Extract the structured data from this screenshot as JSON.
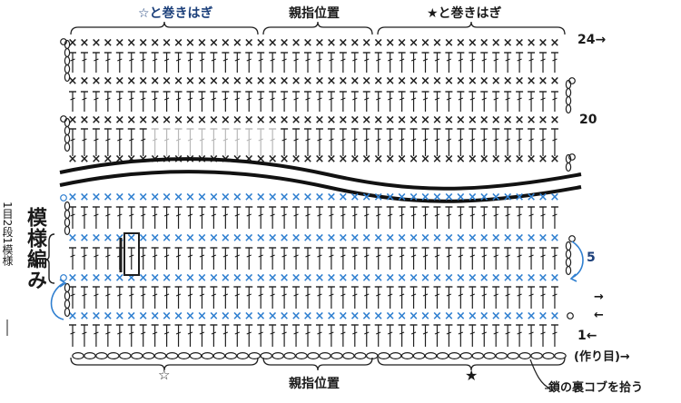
{
  "colors": {
    "ink": "#1f1f1f",
    "blue": "#2f7fd0",
    "faint": "#b8b8b8",
    "dark_band": "#121212",
    "arrow_blue": "#2f7fd0"
  },
  "labels": {
    "top_star_open": "☆と巻きはぎ",
    "top_thumb": "親指位置",
    "top_star_filled": "★と巻きはぎ",
    "bottom_star_open": "☆",
    "bottom_thumb": "親指位置",
    "bottom_star_filled": "★",
    "pick_up_back_bump": "鎖の裏コブを拾う",
    "pattern_title": "模様編み",
    "pattern_sub": "1目2段1模様",
    "foundation": "(作り目)"
  },
  "row_numbers": {
    "r24": "24",
    "r20": "20",
    "r5": "5",
    "r1": "1"
  },
  "symbols": {
    "single_crochet": "×",
    "chain": "○",
    "arrow_right": "→",
    "arrow_left": "←",
    "star_open": "☆",
    "star_filled": "★"
  },
  "icons": [
    "single-crochet-mark",
    "double-crochet-stitch",
    "chain-stitch",
    "turning-chain",
    "row-arrow",
    "highlight-box",
    "break-band"
  ]
}
